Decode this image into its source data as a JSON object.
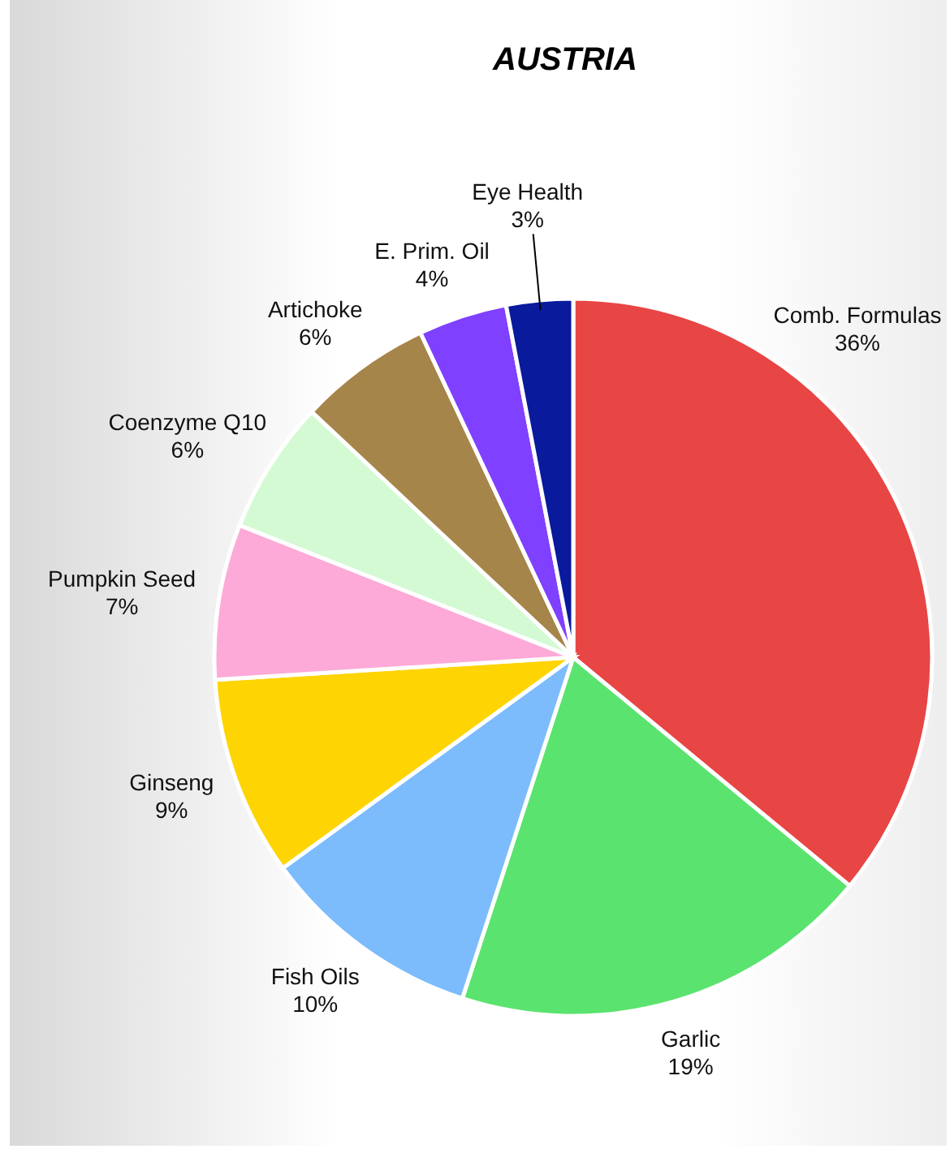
{
  "chart_data": {
    "type": "pie",
    "title": "AUSTRIA",
    "categories": [
      "Comb. Formulas",
      "Garlic",
      "Fish Oils",
      "Ginseng",
      "Pumpkin Seed",
      "Coenzyme Q10",
      "Artichoke",
      "E. Prim. Oil",
      "Eye Health"
    ],
    "values": [
      36,
      19,
      10,
      9,
      7,
      6,
      6,
      4,
      3
    ],
    "colors": [
      "#e84545",
      "#5ae36e",
      "#7cbcfc",
      "#fed403",
      "#fdaad8",
      "#d4fad4",
      "#a6854a",
      "#8040ff",
      "#0a1a9c"
    ],
    "value_labels": [
      "36%",
      "19%",
      "10%",
      "9%",
      "7%",
      "6%",
      "6%",
      "4%",
      "3%"
    ]
  }
}
